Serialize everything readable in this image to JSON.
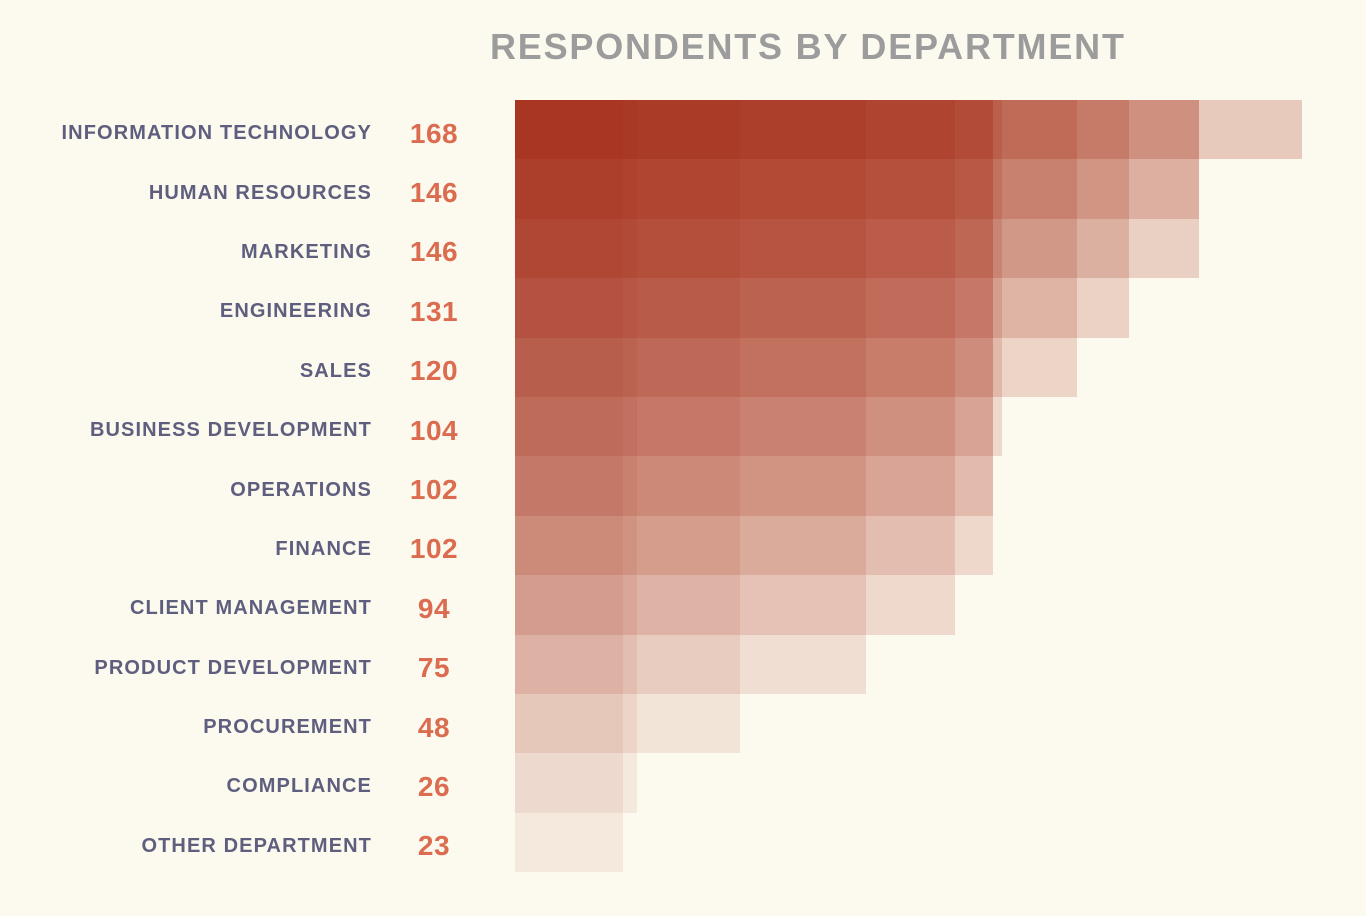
{
  "page": {
    "background": "#FCF9EE"
  },
  "chart_data": {
    "type": "bar",
    "orientation": "horizontal",
    "title": "RESPONDENTS BY DEPARTMENT",
    "categories": [
      "INFORMATION TECHNOLOGY",
      "HUMAN RESOURCES",
      "MARKETING",
      "ENGINEERING",
      "SALES",
      "BUSINESS DEVELOPMENT",
      "OPERATIONS",
      "FINANCE",
      "CLIENT MANAGEMENT",
      "PRODUCT DEVELOPMENT",
      "PROCUREMENT",
      "COMPLIANCE",
      "OTHER DEPARTMENT"
    ],
    "values": [
      168,
      146,
      146,
      131,
      120,
      104,
      102,
      102,
      94,
      75,
      48,
      26,
      23
    ],
    "xlim": [
      0,
      168
    ],
    "grid": false,
    "legend": "none",
    "value_labels_shown": true,
    "shading_style": "each bar is a stack of translucent rectangles, one per equal-or-shorter bar, creating stepped opacity segments that darken toward the left and toward the top rows",
    "colors": {
      "background": "#FCF9EE",
      "category_label": "#5E5E7E",
      "value_label": "#DB6C4F",
      "title": "#9C9C9C",
      "bar_base_rgb": [
        160,
        30,
        8
      ],
      "segment_alpha_min": 0.05,
      "segment_alpha_span": 0.16,
      "darkest_segment_sample": "#AC3B26",
      "lightest_segment_sample": "#F6EBDE"
    }
  }
}
